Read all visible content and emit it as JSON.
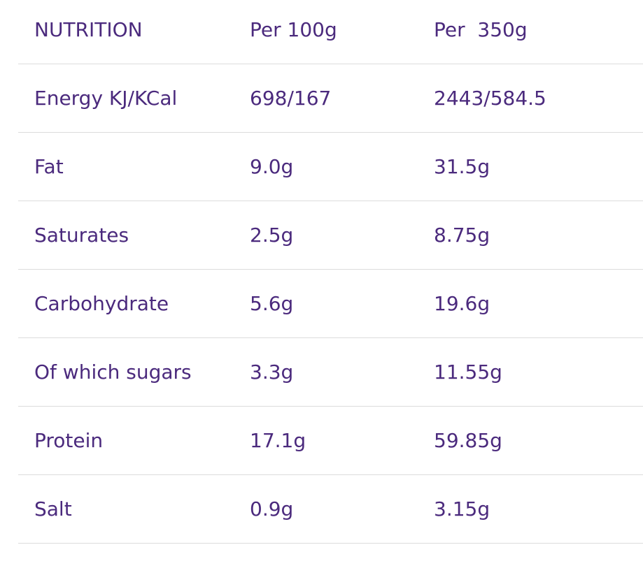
{
  "table": {
    "header": [
      "NUTRITION",
      "Per 100g",
      "Per  350g"
    ],
    "rows": [
      [
        "Energy KJ/KCal",
        "698/167",
        "2443/584.5"
      ],
      [
        "Fat",
        "9.0g",
        "31.5g"
      ],
      [
        "Saturates",
        "2.5g",
        "8.75g"
      ],
      [
        "Carbohydrate",
        "5.6g",
        "19.6g"
      ],
      [
        "Of which sugars",
        "3.3g",
        "11.55g"
      ],
      [
        "Protein",
        "17.1g",
        "59.85g"
      ],
      [
        "Salt",
        "0.9g",
        "3.15g"
      ]
    ]
  }
}
